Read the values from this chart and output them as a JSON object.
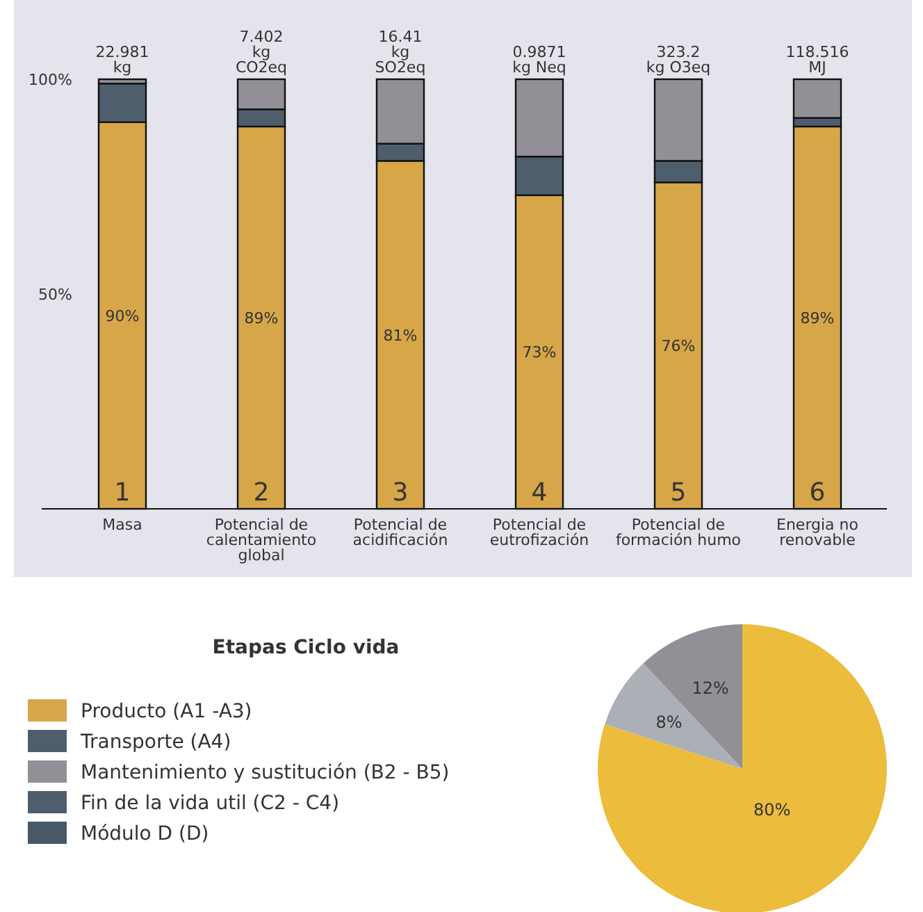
{
  "chart_data": [
    {
      "type": "bar",
      "stacked": true,
      "categories": [
        "Masa",
        "Potencial de calentamiento global",
        "Potencial de acidificación",
        "Potencial de eutrofización",
        "Potencial de formación humo",
        "Energia no renovable"
      ],
      "series": [
        {
          "name": "Producto (A1 -A3)",
          "color": "#d6a648",
          "values": [
            90,
            89,
            81,
            73,
            76,
            89
          ],
          "value_labels": [
            "90%",
            "89%",
            "81%",
            "73%",
            "76%",
            "89%"
          ]
        },
        {
          "name": "Transporte (A4)",
          "color": "#4f5e6d",
          "values": [
            9,
            4,
            4,
            9,
            5,
            2
          ]
        },
        {
          "name": "Mantenimiento y sustitución (B2 - B5)",
          "color": "#938f97",
          "values": [
            1,
            7,
            15,
            18,
            19,
            9
          ]
        },
        {
          "name": "Fin de la vida util (C2 - C4)",
          "color": "#4f5e6d",
          "values": [
            null,
            null,
            null,
            null,
            null,
            null
          ]
        },
        {
          "name": "Módulo D (D)",
          "color": "#485866",
          "values": [
            null,
            null,
            null,
            null,
            null,
            null
          ]
        }
      ],
      "ylim": [
        0,
        100
      ],
      "yticks": [
        {
          "value": 50,
          "label": "50%"
        },
        {
          "value": 100,
          "label": "100%"
        }
      ],
      "annotations": [
        "22.981 kg",
        "7.402 kg CO2eq",
        "16.41 kg SO2eq",
        "0.9871 kg Neq",
        "323.2 kg O3eq",
        "118.516 MJ",
        "1",
        "2",
        "3",
        "4",
        "5",
        "6"
      ],
      "legend_title": "Etapas Ciclo vida",
      "legend": "bottom",
      "grid": false
    },
    {
      "type": "pie",
      "categories": [
        null,
        null,
        null
      ],
      "values": [
        80,
        8,
        12
      ],
      "colors": [
        "#ecbc3c",
        "#aab0b5",
        "#938f97"
      ],
      "value_labels": [
        "80%",
        "8%",
        "12%"
      ]
    }
  ]
}
